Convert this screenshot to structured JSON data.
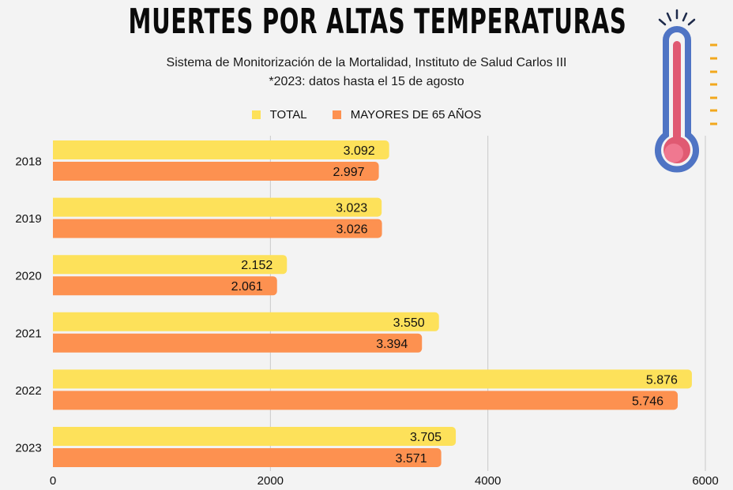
{
  "title": "MUERTES POR ALTAS TEMPERATURAS",
  "subtitle_line1": "Sistema de Monitorización de la Mortalidad, Instituto de Salud Carlos III",
  "subtitle_line2": "*2023: datos hasta el 15 de agosto",
  "icon": "thermometer-icon",
  "chart_data": {
    "type": "bar",
    "orientation": "horizontal",
    "title": "MUERTES POR ALTAS TEMPERATURAS",
    "categories": [
      "2018",
      "2019",
      "2020",
      "2021",
      "2022",
      "2023"
    ],
    "series": [
      {
        "name": "TOTAL",
        "color": "#fde15a",
        "values": [
          3092,
          3023,
          2152,
          3550,
          5876,
          3705
        ],
        "labels": [
          "3.092",
          "3.023",
          "2.152",
          "3.550",
          "5.876",
          "3.705"
        ]
      },
      {
        "name": "MAYORES DE 65 AÑOS",
        "color": "#fd9150",
        "values": [
          2997,
          3026,
          2061,
          3394,
          5746,
          3571
        ],
        "labels": [
          "2.997",
          "3.026",
          "2.061",
          "3.394",
          "5.746",
          "3.571"
        ]
      }
    ],
    "xlim": [
      0,
      6000
    ],
    "xticks": [
      "0",
      "2000",
      "4000",
      "6000"
    ],
    "xtick_values": [
      0,
      2000,
      4000,
      6000
    ],
    "grid": true,
    "legend": "top-center"
  }
}
